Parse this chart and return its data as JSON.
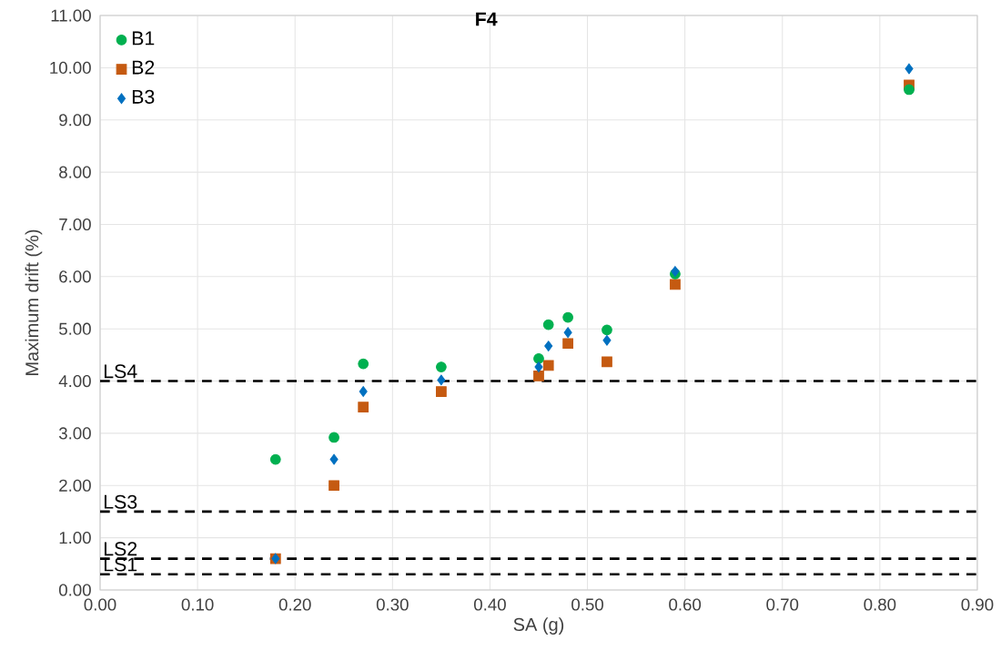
{
  "chart_data": {
    "type": "scatter",
    "title": "F4",
    "xlabel": "SA (g)",
    "ylabel": "Maximum drift (%)",
    "x": [
      0.18,
      0.24,
      0.27,
      0.35,
      0.45,
      0.46,
      0.48,
      0.52,
      0.59,
      0.83
    ],
    "series": [
      {
        "name": "B1",
        "color": "#00b050",
        "marker": "circle",
        "values": [
          2.5,
          2.92,
          4.33,
          4.27,
          4.43,
          5.08,
          5.22,
          4.98,
          6.05,
          9.58
        ]
      },
      {
        "name": "B2",
        "color": "#c55a11",
        "marker": "square",
        "values": [
          0.6,
          2.0,
          3.5,
          3.8,
          4.1,
          4.3,
          4.72,
          4.37,
          5.85,
          9.67
        ]
      },
      {
        "name": "B3",
        "color": "#0070c0",
        "marker": "diamond",
        "values": [
          0.6,
          2.5,
          3.8,
          4.02,
          4.27,
          4.67,
          4.93,
          4.78,
          6.1,
          9.98
        ]
      }
    ],
    "xlim": [
      0,
      0.9
    ],
    "xticks": [
      {
        "value": 0,
        "label": "0.00"
      },
      {
        "value": 0.1,
        "label": "0.10"
      },
      {
        "value": 0.2,
        "label": "0.20"
      },
      {
        "value": 0.3,
        "label": "0.30"
      },
      {
        "value": 0.4,
        "label": "0.40"
      },
      {
        "value": 0.5,
        "label": "0.50"
      },
      {
        "value": 0.6,
        "label": "0.60"
      },
      {
        "value": 0.7,
        "label": "0.70"
      },
      {
        "value": 0.8,
        "label": "0.80"
      },
      {
        "value": 0.9,
        "label": "0.90"
      }
    ],
    "ylim": [
      0,
      11
    ],
    "yticks": [
      {
        "value": 0,
        "label": "0.00"
      },
      {
        "value": 1,
        "label": "1.00"
      },
      {
        "value": 2,
        "label": "2.00"
      },
      {
        "value": 3,
        "label": "3.00"
      },
      {
        "value": 4,
        "label": "4.00"
      },
      {
        "value": 5,
        "label": "5.00"
      },
      {
        "value": 6,
        "label": "6.00"
      },
      {
        "value": 7,
        "label": "7.00"
      },
      {
        "value": 8,
        "label": "8.00"
      },
      {
        "value": 9,
        "label": "9.00"
      },
      {
        "value": 10,
        "label": "10.00"
      },
      {
        "value": 11,
        "label": "11.00"
      }
    ],
    "ref_lines": [
      {
        "axis": "y",
        "value": 4.0,
        "label": "LS4",
        "color": "#000000",
        "line_style": "dashed"
      },
      {
        "axis": "y",
        "value": 1.5,
        "label": "LS3",
        "color": "#000000",
        "line_style": "dashed"
      },
      {
        "axis": "y",
        "value": 0.6,
        "label": "LS2",
        "color": "#000000",
        "line_style": "dashed"
      },
      {
        "axis": "y",
        "value": 0.3,
        "label": "LS1",
        "color": "#000000",
        "line_style": "dashed"
      }
    ],
    "grid": true,
    "legend": "top left"
  }
}
